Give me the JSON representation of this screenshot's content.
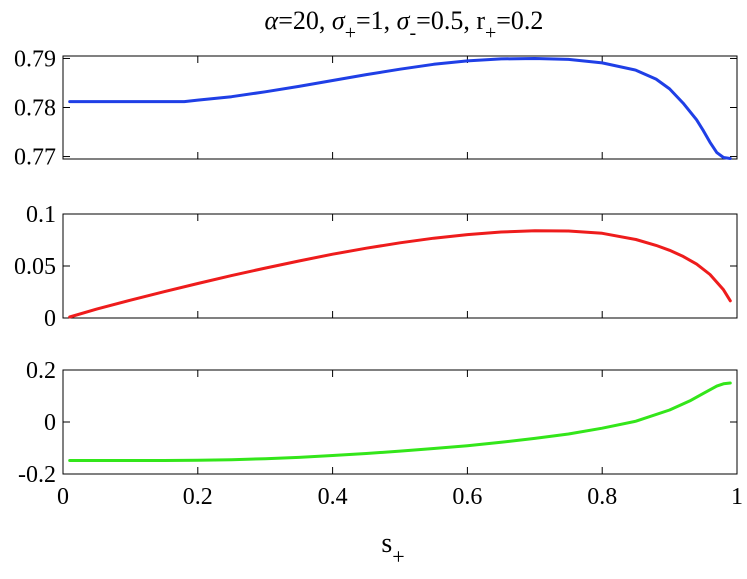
{
  "chart_data": [
    {
      "type": "line",
      "title": "α=20, σ+=1, σ-=0.5, r+=0.2",
      "xlabel": "",
      "ylabel": "",
      "xlim": [
        0,
        1
      ],
      "ylim": [
        0.7695,
        0.7905
      ],
      "yticks": [
        0.77,
        0.78,
        0.79
      ],
      "ytick_labels": [
        "0.77",
        "0.78",
        "0.79"
      ],
      "grid": false,
      "series": [
        {
          "color": "#1f3fe6",
          "x": [
            0.01,
            0.05,
            0.1,
            0.15,
            0.18,
            0.2,
            0.25,
            0.3,
            0.35,
            0.4,
            0.45,
            0.5,
            0.55,
            0.6,
            0.65,
            0.7,
            0.75,
            0.8,
            0.85,
            0.88,
            0.9,
            0.92,
            0.94,
            0.95,
            0.96,
            0.97,
            0.98,
            0.99
          ],
          "y": [
            0.7812,
            0.7812,
            0.7812,
            0.7812,
            0.7812,
            0.7815,
            0.7822,
            0.7832,
            0.7843,
            0.7855,
            0.7867,
            0.7878,
            0.7888,
            0.7895,
            0.7899,
            0.79,
            0.7898,
            0.7891,
            0.7876,
            0.7858,
            0.7838,
            0.7809,
            0.7775,
            0.7753,
            0.7729,
            0.7708,
            0.7698,
            0.7696
          ]
        }
      ]
    },
    {
      "type": "line",
      "title": "",
      "xlabel": "",
      "ylabel": "",
      "xlim": [
        0,
        1
      ],
      "ylim": [
        0,
        0.1
      ],
      "yticks": [
        0,
        0.05,
        0.1
      ],
      "ytick_labels": [
        "0",
        "0.05",
        "0.1"
      ],
      "grid": false,
      "series": [
        {
          "color": "#ee1c1c",
          "x": [
            0.01,
            0.05,
            0.1,
            0.15,
            0.2,
            0.25,
            0.3,
            0.35,
            0.4,
            0.45,
            0.5,
            0.55,
            0.6,
            0.65,
            0.7,
            0.75,
            0.8,
            0.85,
            0.88,
            0.9,
            0.92,
            0.94,
            0.96,
            0.98,
            0.99
          ],
          "y": [
            0.001,
            0.0086,
            0.0171,
            0.0253,
            0.0332,
            0.0408,
            0.048,
            0.0548,
            0.0613,
            0.0671,
            0.0723,
            0.0767,
            0.0802,
            0.0827,
            0.0838,
            0.0837,
            0.0814,
            0.0755,
            0.0698,
            0.0651,
            0.0592,
            0.0518,
            0.0418,
            0.0271,
            0.0165
          ]
        }
      ]
    },
    {
      "type": "line",
      "title": "",
      "xlabel": "s+",
      "ylabel": "",
      "xlim": [
        0,
        1
      ],
      "ylim": [
        -0.2,
        0.2
      ],
      "xticks": [
        0,
        0.2,
        0.4,
        0.6,
        0.8,
        1
      ],
      "xtick_labels": [
        "0",
        "0.2",
        "0.4",
        "0.6",
        "0.8",
        "1"
      ],
      "yticks": [
        -0.2,
        0,
        0.2
      ],
      "ytick_labels": [
        "-0.2",
        "0",
        "0.2"
      ],
      "grid": false,
      "series": [
        {
          "color": "#33e61a",
          "x": [
            0.01,
            0.05,
            0.1,
            0.15,
            0.2,
            0.25,
            0.3,
            0.35,
            0.4,
            0.45,
            0.5,
            0.55,
            0.6,
            0.65,
            0.7,
            0.75,
            0.8,
            0.85,
            0.9,
            0.93,
            0.95,
            0.97,
            0.98,
            0.99
          ],
          "y": [
            -0.148,
            -0.148,
            -0.148,
            -0.148,
            -0.147,
            -0.145,
            -0.141,
            -0.136,
            -0.129,
            -0.121,
            -0.112,
            -0.102,
            -0.091,
            -0.078,
            -0.063,
            -0.046,
            -0.024,
            0.003,
            0.046,
            0.081,
            0.11,
            0.138,
            0.147,
            0.15
          ]
        }
      ]
    }
  ]
}
